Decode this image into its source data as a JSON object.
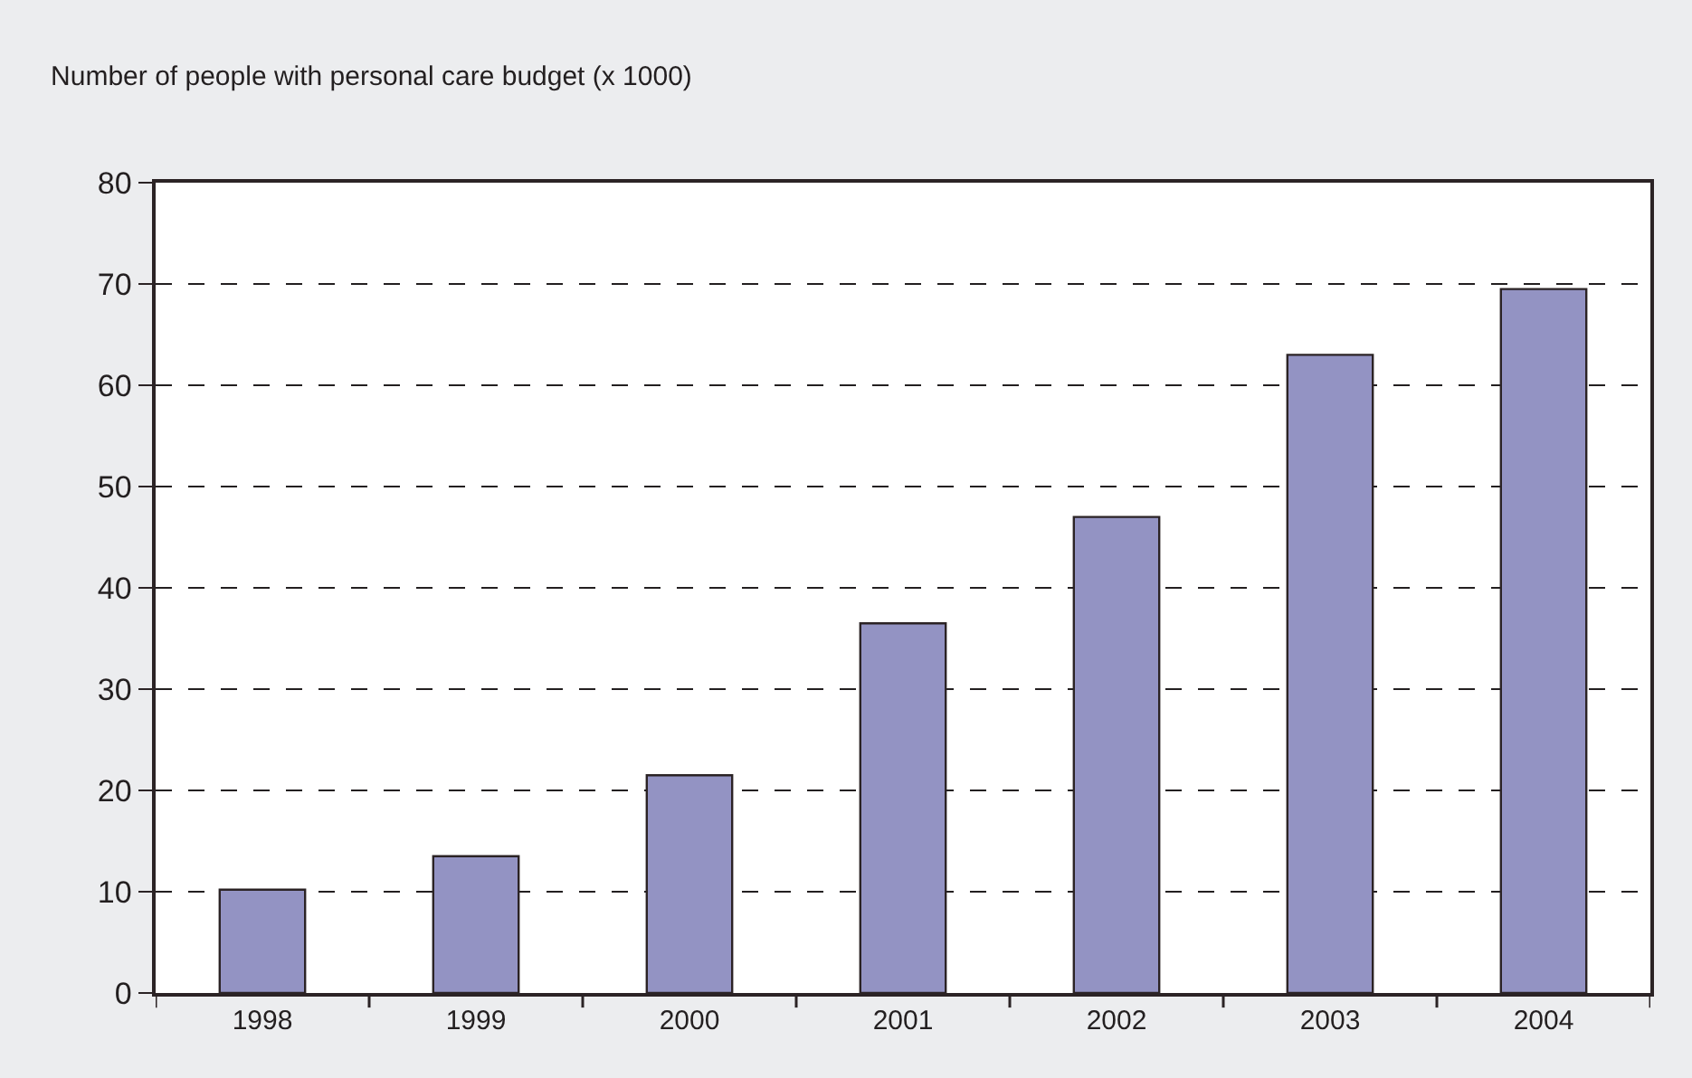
{
  "chart_data": {
    "type": "bar",
    "title": "Number of people with personal care budget (x 1000)",
    "categories": [
      "1998",
      "1999",
      "2000",
      "2001",
      "2002",
      "2003",
      "2004"
    ],
    "values": [
      10.2,
      13.5,
      21.5,
      36.5,
      47.0,
      63.0,
      69.5
    ],
    "color": "#9393c3",
    "ylim": [
      0,
      80
    ],
    "yticks": [
      0,
      10,
      20,
      30,
      40,
      50,
      60,
      70,
      80
    ],
    "grid": "y",
    "legend": false
  }
}
